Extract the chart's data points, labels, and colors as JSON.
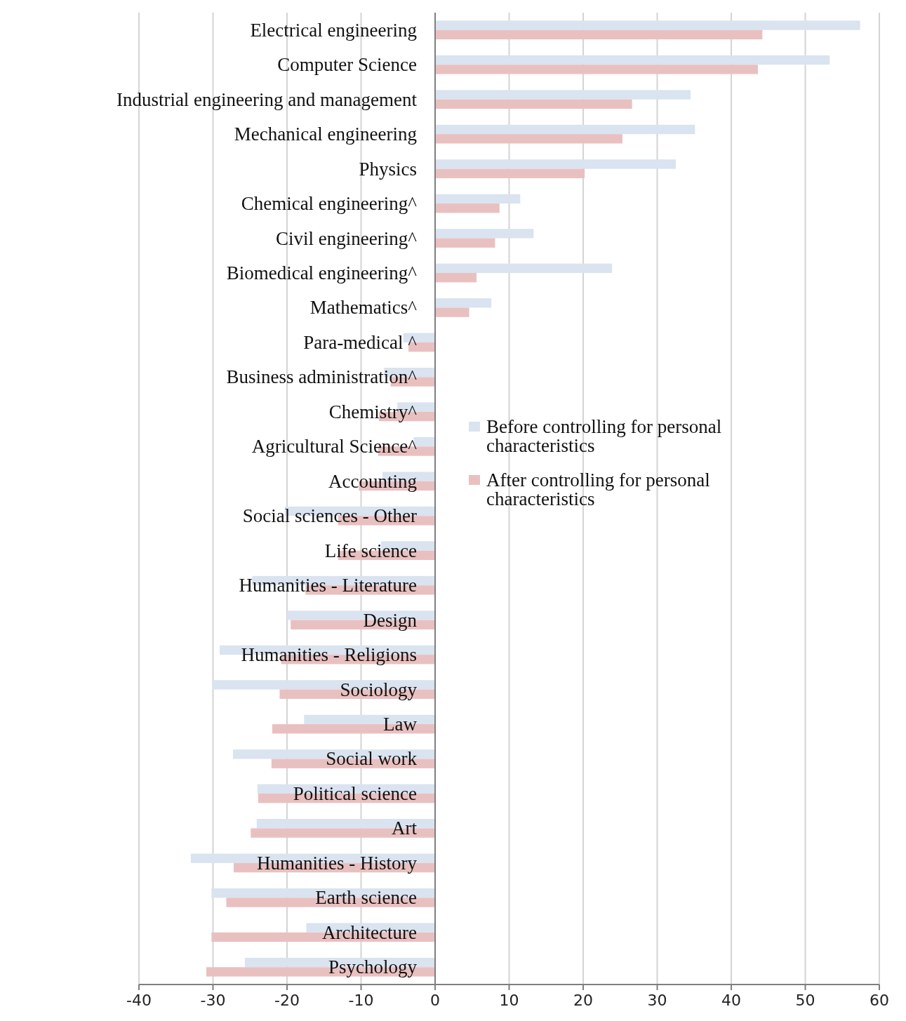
{
  "chart_data": {
    "type": "bar",
    "orientation": "horizontal",
    "categories": [
      "Electrical engineering",
      "Computer Science",
      "Industrial engineering and management",
      "Mechanical engineering",
      "Physics",
      "Chemical engineering^",
      "Civil engineering^",
      "Biomedical engineering^",
      "Mathematics^",
      "Para-medical ^",
      "Business administration^",
      "Chemistry^",
      "Agricultural Science^",
      "Accounting",
      "Social sciences - Other",
      "Life science",
      "Humanities - Literature",
      "Design",
      "Humanities - Religions",
      "Sociology",
      "Law",
      "Social work",
      "Political science",
      "Art",
      "Humanities - History",
      "Earth science",
      "Architecture",
      "Psychology"
    ],
    "series": [
      {
        "name": "Before controlling for personal characteristics",
        "color": "#dae3f0",
        "values": [
          57.4,
          53.3,
          34.5,
          35.1,
          32.5,
          11.5,
          13.3,
          23.9,
          7.6,
          -4.3,
          -6.9,
          -5.1,
          -2.9,
          -7.1,
          -20.3,
          -7.3,
          -24.7,
          -20.0,
          -29.1,
          -30.1,
          -17.7,
          -27.3,
          -24.0,
          -24.1,
          -33.0,
          -30.2,
          -17.4,
          -25.7
        ]
      },
      {
        "name": "After controlling for personal characteristics",
        "color": "#e9c0c0",
        "values": [
          44.2,
          43.6,
          26.6,
          25.3,
          20.2,
          8.7,
          8.1,
          5.6,
          4.6,
          -3.6,
          -6.0,
          -7.6,
          -7.7,
          -10.3,
          -13.1,
          -13.1,
          -17.5,
          -19.5,
          -20.8,
          -21.0,
          -22.0,
          -22.1,
          -23.9,
          -24.9,
          -27.2,
          -28.2,
          -30.2,
          -30.9
        ]
      }
    ],
    "xlim": [
      -40,
      60
    ],
    "xticks": [
      -40,
      -30,
      -20,
      -10,
      0,
      10,
      20,
      30,
      40,
      50,
      60
    ],
    "grid": "x",
    "legend": "right"
  }
}
